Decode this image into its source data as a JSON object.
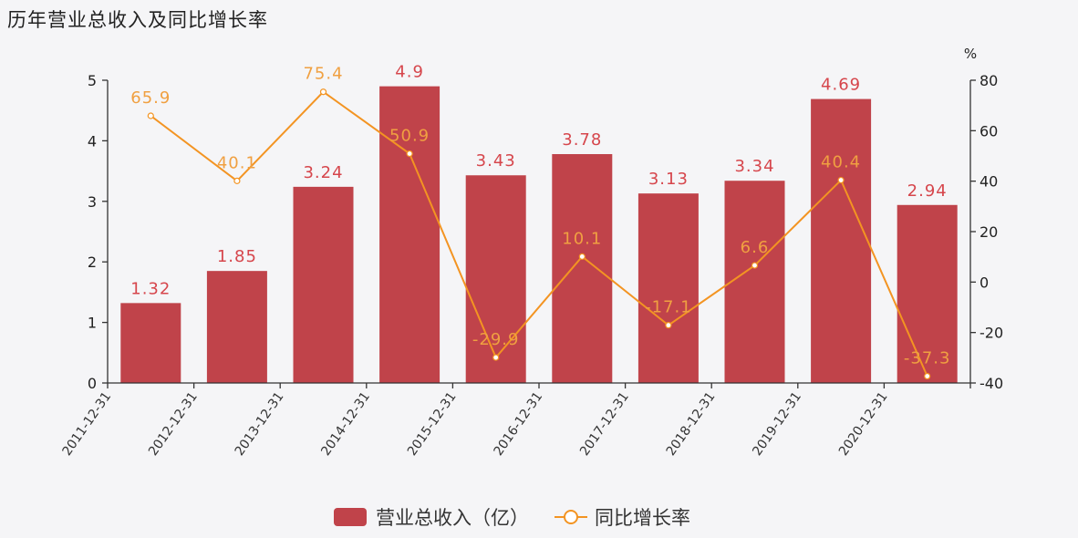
{
  "title": "历年营业总收入及同比增长率",
  "colors": {
    "bar": "#c0434a",
    "bar_label": "#d6464c",
    "line": "#f39422",
    "line_label": "#f0a041",
    "axis": "#333333"
  },
  "legend": {
    "bar_label": "营业总收入（亿）",
    "line_label": "同比增长率"
  },
  "right_axis_unit": "%",
  "chart_data": {
    "type": "bar",
    "title": "历年营业总收入及同比增长率",
    "categories": [
      "2011-12-31",
      "2012-12-31",
      "2013-12-31",
      "2014-12-31",
      "2015-12-31",
      "2016-12-31",
      "2017-12-31",
      "2018-12-31",
      "2019-12-31",
      "2020-12-31"
    ],
    "series": [
      {
        "name": "营业总收入（亿）",
        "type": "bar",
        "axis": "left",
        "values": [
          1.32,
          1.85,
          3.24,
          4.9,
          3.43,
          3.78,
          3.13,
          3.34,
          4.69,
          2.94
        ]
      },
      {
        "name": "同比增长率",
        "type": "line",
        "axis": "right",
        "values": [
          65.9,
          40.1,
          75.4,
          50.9,
          -29.9,
          10.1,
          -17.1,
          6.6,
          40.4,
          -37.3
        ]
      }
    ],
    "xlabel": "",
    "ylabel": "",
    "y2label": "%",
    "ylim": [
      0,
      5
    ],
    "y2lim": [
      -40,
      80
    ],
    "yticks": [
      0,
      1,
      2,
      3,
      4,
      5
    ],
    "y2ticks": [
      -40,
      -20,
      0,
      20,
      40,
      60,
      80
    ],
    "grid": false,
    "legend_position": "bottom"
  }
}
